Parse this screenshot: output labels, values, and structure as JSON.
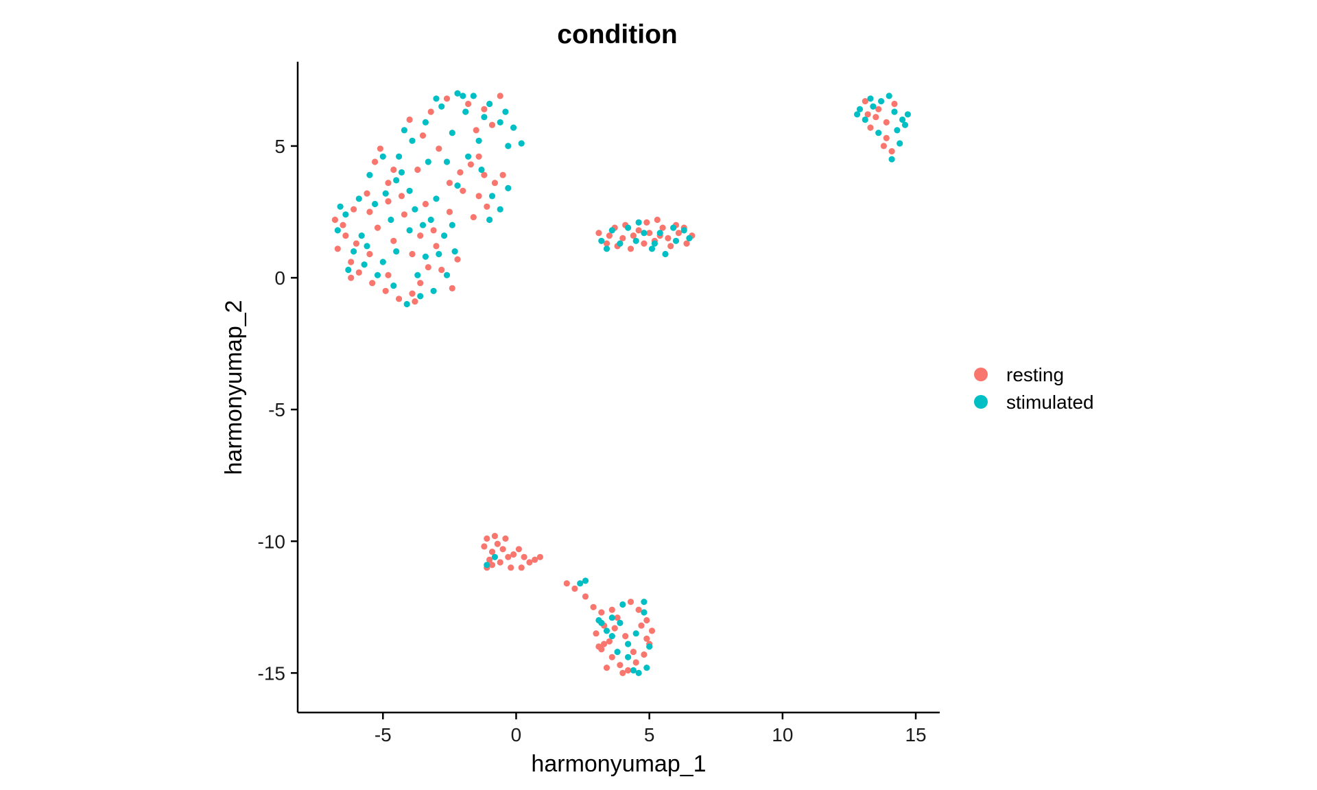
{
  "chart_data": {
    "type": "scatter",
    "title": "condition",
    "xlabel": "harmonyumap_1",
    "ylabel": "harmonyumap_2",
    "xlim": [
      -8.2,
      15.9
    ],
    "ylim": [
      -16.5,
      8.2
    ],
    "xticks": [
      -5,
      0,
      5,
      10,
      15
    ],
    "yticks": [
      -15,
      -10,
      -5,
      0,
      5
    ],
    "xtick_labels": [
      "-5",
      "0",
      "5",
      "10",
      "15"
    ],
    "ytick_labels": [
      "-15",
      "-10",
      "-5",
      "0",
      "5"
    ],
    "grid": false,
    "legend_position": "right",
    "series": [
      {
        "name": "resting",
        "color": "#F8766D",
        "points": [
          [
            -5.1,
            4.9
          ],
          [
            -5.3,
            4.4
          ],
          [
            -4.6,
            4.1
          ],
          [
            -4.8,
            3.6
          ],
          [
            -5.6,
            3.2
          ],
          [
            -6.1,
            2.6
          ],
          [
            -6.8,
            2.2
          ],
          [
            -6.4,
            1.6
          ],
          [
            -6.7,
            1.1
          ],
          [
            -6.2,
            0.6
          ],
          [
            -5.9,
            0.2
          ],
          [
            -5.4,
            -0.2
          ],
          [
            -4.9,
            -0.5
          ],
          [
            -4.4,
            -0.8
          ],
          [
            -3.9,
            -0.6
          ],
          [
            -3.6,
            -0.2
          ],
          [
            -3.3,
            0.4
          ],
          [
            -3.9,
            0.9
          ],
          [
            -4.6,
            1.4
          ],
          [
            -5.2,
            1.9
          ],
          [
            -4.2,
            2.4
          ],
          [
            -3.6,
            1.6
          ],
          [
            -3.0,
            1.2
          ],
          [
            -2.8,
            0.3
          ],
          [
            -2.4,
            -0.4
          ],
          [
            -2.2,
            0.7
          ],
          [
            -4.8,
            0.1
          ],
          [
            -5.5,
            0.9
          ],
          [
            -6.0,
            1.3
          ],
          [
            -4.3,
            3.1
          ],
          [
            -3.7,
            4.1
          ],
          [
            -3.5,
            5.4
          ],
          [
            -4.0,
            6.0
          ],
          [
            -3.2,
            6.3
          ],
          [
            -2.6,
            6.8
          ],
          [
            -1.8,
            6.6
          ],
          [
            -1.2,
            6.4
          ],
          [
            -0.6,
            6.9
          ],
          [
            -0.9,
            5.8
          ],
          [
            -1.5,
            5.6
          ],
          [
            -2.1,
            4.0
          ],
          [
            -2.5,
            3.6
          ],
          [
            -1.7,
            4.3
          ],
          [
            -1.2,
            3.9
          ],
          [
            -0.8,
            3.6
          ],
          [
            -1.4,
            3.1
          ],
          [
            -2.0,
            3.3
          ],
          [
            -1.1,
            2.7
          ],
          [
            -1.6,
            2.3
          ],
          [
            -1.4,
            4.6
          ],
          [
            -0.5,
            3.9
          ],
          [
            -2.9,
            4.9
          ],
          [
            -4.8,
            2.9
          ],
          [
            -5.5,
            2.5
          ],
          [
            -3.4,
            2.8
          ],
          [
            -6.5,
            2.0
          ],
          [
            -6.2,
            0.0
          ],
          [
            -3.8,
            -0.9
          ],
          [
            -2.5,
            2.5
          ],
          [
            -3.1,
            1.8
          ],
          [
            3.1,
            1.7
          ],
          [
            3.4,
            1.3
          ],
          [
            3.7,
            1.9
          ],
          [
            4.0,
            1.5
          ],
          [
            4.3,
            1.1
          ],
          [
            4.6,
            1.8
          ],
          [
            4.9,
            2.1
          ],
          [
            5.2,
            1.4
          ],
          [
            5.5,
            1.9
          ],
          [
            5.8,
            1.2
          ],
          [
            6.1,
            1.7
          ],
          [
            6.4,
            1.3
          ],
          [
            6.6,
            1.6
          ],
          [
            3.5,
            1.6
          ],
          [
            4.1,
            2.0
          ],
          [
            4.8,
            1.3
          ],
          [
            5.4,
            1.6
          ],
          [
            6.0,
            2.0
          ],
          [
            3.8,
            1.2
          ],
          [
            5.0,
            1.7
          ],
          [
            5.7,
            1.5
          ],
          [
            6.3,
            1.9
          ],
          [
            4.4,
            1.6
          ],
          [
            5.3,
            2.2
          ],
          [
            13.1,
            6.7
          ],
          [
            13.6,
            6.4
          ],
          [
            13.9,
            5.9
          ],
          [
            13.3,
            5.7
          ],
          [
            13.8,
            5.0
          ],
          [
            14.1,
            4.8
          ],
          [
            13.5,
            6.1
          ],
          [
            14.2,
            6.6
          ],
          [
            13.9,
            5.3
          ],
          [
            13.2,
            6.2
          ],
          [
            -1.1,
            -9.9
          ],
          [
            -0.8,
            -9.8
          ],
          [
            -0.4,
            -9.9
          ],
          [
            -1.2,
            -10.2
          ],
          [
            -0.9,
            -10.4
          ],
          [
            -0.5,
            -10.3
          ],
          [
            -0.1,
            -10.5
          ],
          [
            0.3,
            -10.6
          ],
          [
            0.7,
            -10.7
          ],
          [
            -1.0,
            -10.7
          ],
          [
            -0.6,
            -10.8
          ],
          [
            -0.2,
            -11.0
          ],
          [
            0.2,
            -11.0
          ],
          [
            0.5,
            -10.8
          ],
          [
            -1.1,
            -11.0
          ],
          [
            -0.7,
            -10.1
          ],
          [
            -0.3,
            -10.6
          ],
          [
            0.9,
            -10.6
          ],
          [
            -0.9,
            -10.9
          ],
          [
            0.1,
            -10.3
          ],
          [
            1.9,
            -11.6
          ],
          [
            2.2,
            -11.8
          ],
          [
            2.6,
            -12.1
          ],
          [
            2.9,
            -12.5
          ],
          [
            3.2,
            -12.7
          ],
          [
            3.0,
            -13.5
          ],
          [
            3.3,
            -13.2
          ],
          [
            3.5,
            -13.8
          ],
          [
            3.2,
            -14.1
          ],
          [
            3.6,
            -14.4
          ],
          [
            3.9,
            -14.7
          ],
          [
            4.2,
            -14.9
          ],
          [
            4.5,
            -14.6
          ],
          [
            4.8,
            -14.3
          ],
          [
            5.0,
            -13.9
          ],
          [
            5.1,
            -13.4
          ],
          [
            4.9,
            -13.0
          ],
          [
            4.6,
            -12.6
          ],
          [
            4.3,
            -12.3
          ],
          [
            3.8,
            -12.9
          ],
          [
            3.4,
            -14.8
          ],
          [
            4.1,
            -13.6
          ],
          [
            4.7,
            -13.2
          ],
          [
            3.7,
            -13.3
          ],
          [
            4.4,
            -14.2
          ],
          [
            3.1,
            -14.0
          ],
          [
            4.0,
            -15.0
          ],
          [
            3.6,
            -12.6
          ],
          [
            4.9,
            -13.7
          ],
          [
            3.3,
            -13.9
          ]
        ]
      },
      {
        "name": "stimulated",
        "color": "#00BFC4",
        "points": [
          [
            -5.0,
            4.6
          ],
          [
            -5.5,
            3.9
          ],
          [
            -4.5,
            3.7
          ],
          [
            -4.0,
            3.3
          ],
          [
            -5.9,
            3.0
          ],
          [
            -6.4,
            2.4
          ],
          [
            -6.7,
            1.8
          ],
          [
            -6.1,
            1.0
          ],
          [
            -5.7,
            0.5
          ],
          [
            -5.2,
            0.1
          ],
          [
            -4.6,
            -0.3
          ],
          [
            -4.1,
            -1.0
          ],
          [
            -3.7,
            0.1
          ],
          [
            -3.4,
            0.8
          ],
          [
            -4.0,
            1.8
          ],
          [
            -4.7,
            2.2
          ],
          [
            -3.8,
            2.6
          ],
          [
            -3.2,
            2.2
          ],
          [
            -2.7,
            1.6
          ],
          [
            -2.3,
            1.0
          ],
          [
            -2.6,
            0.1
          ],
          [
            -3.1,
            -0.5
          ],
          [
            -5.0,
            0.6
          ],
          [
            -5.8,
            1.6
          ],
          [
            -4.4,
            4.6
          ],
          [
            -3.9,
            5.2
          ],
          [
            -3.4,
            5.9
          ],
          [
            -2.8,
            6.5
          ],
          [
            -2.2,
            7.0
          ],
          [
            -1.6,
            6.9
          ],
          [
            -1.0,
            6.6
          ],
          [
            -0.4,
            6.3
          ],
          [
            -0.1,
            5.7
          ],
          [
            0.2,
            5.1
          ],
          [
            -0.6,
            5.9
          ],
          [
            -1.2,
            6.1
          ],
          [
            -1.9,
            6.3
          ],
          [
            -2.4,
            5.5
          ],
          [
            -1.8,
            4.6
          ],
          [
            -1.3,
            4.1
          ],
          [
            -0.9,
            3.1
          ],
          [
            -0.6,
            2.6
          ],
          [
            -1.0,
            2.2
          ],
          [
            -0.3,
            3.4
          ],
          [
            -2.2,
            3.5
          ],
          [
            -2.6,
            4.4
          ],
          [
            -3.0,
            3.0
          ],
          [
            -4.3,
            4.0
          ],
          [
            -5.3,
            2.8
          ],
          [
            -6.6,
            2.7
          ],
          [
            -6.3,
            0.3
          ],
          [
            -3.6,
            -0.7
          ],
          [
            -2.4,
            2.0
          ],
          [
            -3.3,
            4.4
          ],
          [
            -4.9,
            3.2
          ],
          [
            -0.3,
            5.0
          ],
          [
            -1.4,
            5.2
          ],
          [
            -2.0,
            6.9
          ],
          [
            -3.0,
            6.8
          ],
          [
            -4.2,
            5.6
          ],
          [
            -3.5,
            2.0
          ],
          [
            -2.9,
            0.9
          ],
          [
            -4.5,
            1.0
          ],
          [
            -5.6,
            1.2
          ],
          [
            3.2,
            1.4
          ],
          [
            3.6,
            1.8
          ],
          [
            3.9,
            1.3
          ],
          [
            4.2,
            1.9
          ],
          [
            4.5,
            1.4
          ],
          [
            4.8,
            1.7
          ],
          [
            5.1,
            1.1
          ],
          [
            5.4,
            1.7
          ],
          [
            5.6,
            0.9
          ],
          [
            6.0,
            1.4
          ],
          [
            6.3,
            1.8
          ],
          [
            6.5,
            1.5
          ],
          [
            3.4,
            1.1
          ],
          [
            4.6,
            2.1
          ],
          [
            5.9,
            1.9
          ],
          [
            5.2,
            1.3
          ],
          [
            12.9,
            6.4
          ],
          [
            13.3,
            6.8
          ],
          [
            13.7,
            6.7
          ],
          [
            14.2,
            6.3
          ],
          [
            14.5,
            6.0
          ],
          [
            14.7,
            6.2
          ],
          [
            14.3,
            5.6
          ],
          [
            13.6,
            5.5
          ],
          [
            13.1,
            6.0
          ],
          [
            12.8,
            6.2
          ],
          [
            14.0,
            6.9
          ],
          [
            14.4,
            5.1
          ],
          [
            14.1,
            4.5
          ],
          [
            13.4,
            6.5
          ],
          [
            14.6,
            5.8
          ],
          [
            -1.1,
            -10.9
          ],
          [
            -0.8,
            -10.6
          ],
          [
            2.4,
            -11.6
          ],
          [
            2.6,
            -11.5
          ],
          [
            3.2,
            -13.1
          ],
          [
            3.6,
            -13.6
          ],
          [
            3.9,
            -13.1
          ],
          [
            4.2,
            -13.9
          ],
          [
            4.5,
            -13.5
          ],
          [
            4.8,
            -12.7
          ],
          [
            5.0,
            -14.0
          ],
          [
            4.6,
            -15.0
          ],
          [
            4.2,
            -14.4
          ],
          [
            3.8,
            -14.2
          ],
          [
            3.4,
            -13.4
          ],
          [
            3.1,
            -13.0
          ],
          [
            4.8,
            -12.3
          ],
          [
            4.9,
            -14.8
          ],
          [
            3.6,
            -12.9
          ],
          [
            4.0,
            -12.4
          ],
          [
            4.4,
            -14.9
          ]
        ]
      }
    ]
  }
}
